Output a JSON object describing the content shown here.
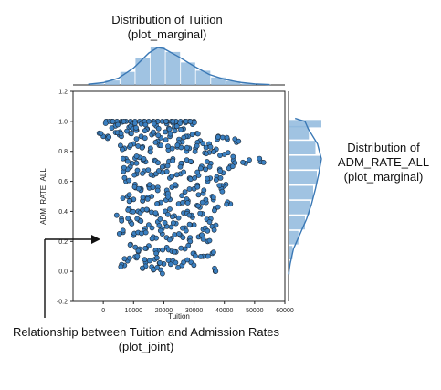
{
  "annotations": {
    "top": {
      "line1": "Distribution of Tuition",
      "line2": "(plot_marginal)"
    },
    "right": {
      "line1": "Distribution of",
      "line2": "ADM_RATE_ALL",
      "line3": "(plot_marginal)"
    },
    "bottom": {
      "line1": "Relationship between Tuition and Admission Rates",
      "line2": "(plot_joint)"
    }
  },
  "chart_data": {
    "type": "scatter",
    "xlabel": "Tuition",
    "ylabel": "ADM_RATE_ALL",
    "xlim": [
      -10000,
      60000
    ],
    "ylim": [
      -0.2,
      1.2
    ],
    "x_ticks": [
      0,
      10000,
      20000,
      30000,
      40000,
      50000,
      60000
    ],
    "y_ticks": [
      -0.2,
      0.0,
      0.2,
      0.4,
      0.6,
      0.8,
      1.0,
      1.2
    ],
    "x_tick_labels": [
      "0",
      "10000",
      "20000",
      "30000",
      "40000",
      "50000",
      "60000"
    ],
    "y_tick_labels": [
      "-0.2",
      "0.0",
      "0.2",
      "0.4",
      "0.6",
      "0.8",
      "1.0",
      "1.2"
    ],
    "point_color": "#3a7fc0",
    "point_edge": "#1f2a36",
    "marginal_color": "#8fb9dd",
    "marginal_line": "#3a78b5",
    "points_dense": [
      [
        1000,
        1.0
      ],
      [
        2000,
        1.0
      ],
      [
        3000,
        1.0
      ],
      [
        4500,
        1.0
      ],
      [
        6000,
        1.0
      ],
      [
        7500,
        1.0
      ],
      [
        9000,
        1.0
      ],
      [
        10500,
        1.0
      ],
      [
        12000,
        1.0
      ],
      [
        13500,
        1.0
      ],
      [
        15000,
        1.0
      ],
      [
        16500,
        1.0
      ],
      [
        18000,
        1.0
      ],
      [
        19500,
        1.0
      ],
      [
        21000,
        1.0
      ],
      [
        22500,
        1.0
      ],
      [
        24000,
        1.0
      ],
      [
        25500,
        1.0
      ],
      [
        27000,
        1.0
      ],
      [
        28500,
        1.0
      ],
      [
        30000,
        1.0
      ],
      [
        0,
        0.9
      ],
      [
        1500,
        0.9
      ],
      [
        4000,
        0.97
      ],
      [
        5500,
        0.93
      ],
      [
        8500,
        0.96
      ],
      [
        11000,
        0.94
      ],
      [
        14500,
        0.95
      ],
      [
        17500,
        0.97
      ],
      [
        20500,
        0.93
      ],
      [
        23500,
        0.96
      ],
      [
        26500,
        0.95
      ],
      [
        29500,
        0.98
      ],
      [
        31000,
        0.92
      ],
      [
        6000,
        0.9
      ],
      [
        9000,
        0.92
      ],
      [
        12500,
        0.9
      ],
      [
        16000,
        0.91
      ],
      [
        19000,
        0.89
      ],
      [
        22000,
        0.9
      ],
      [
        25000,
        0.88
      ],
      [
        28000,
        0.9
      ],
      [
        32000,
        0.87
      ],
      [
        35000,
        0.85
      ],
      [
        38000,
        0.9
      ],
      [
        41000,
        0.88
      ],
      [
        44000,
        0.86
      ],
      [
        7000,
        0.82
      ],
      [
        10000,
        0.85
      ],
      [
        13000,
        0.83
      ],
      [
        15500,
        0.8
      ],
      [
        18500,
        0.84
      ],
      [
        21500,
        0.81
      ],
      [
        24500,
        0.83
      ],
      [
        27500,
        0.8
      ],
      [
        30500,
        0.82
      ],
      [
        33500,
        0.79
      ],
      [
        36500,
        0.8
      ],
      [
        40000,
        0.78
      ],
      [
        43000,
        0.74
      ],
      [
        7500,
        0.75
      ],
      [
        9500,
        0.72
      ],
      [
        12000,
        0.76
      ],
      [
        14000,
        0.73
      ],
      [
        17000,
        0.74
      ],
      [
        20000,
        0.7
      ],
      [
        23000,
        0.75
      ],
      [
        26000,
        0.72
      ],
      [
        29000,
        0.73
      ],
      [
        32500,
        0.7
      ],
      [
        35500,
        0.72
      ],
      [
        38500,
        0.68
      ],
      [
        42000,
        0.7
      ],
      [
        47000,
        0.72
      ],
      [
        52000,
        0.73
      ],
      [
        8000,
        0.68
      ],
      [
        11000,
        0.65
      ],
      [
        13500,
        0.67
      ],
      [
        16500,
        0.64
      ],
      [
        19500,
        0.66
      ],
      [
        22500,
        0.63
      ],
      [
        25500,
        0.65
      ],
      [
        28500,
        0.62
      ],
      [
        31500,
        0.64
      ],
      [
        34500,
        0.6
      ],
      [
        37500,
        0.63
      ],
      [
        40500,
        0.58
      ],
      [
        7500,
        0.6
      ],
      [
        10500,
        0.58
      ],
      [
        12500,
        0.55
      ],
      [
        15000,
        0.57
      ],
      [
        18000,
        0.56
      ],
      [
        21000,
        0.54
      ],
      [
        24000,
        0.57
      ],
      [
        27000,
        0.53
      ],
      [
        30000,
        0.55
      ],
      [
        33000,
        0.52
      ],
      [
        36000,
        0.5
      ],
      [
        39000,
        0.55
      ],
      [
        8000,
        0.5
      ],
      [
        10000,
        0.48
      ],
      [
        13000,
        0.47
      ],
      [
        16000,
        0.5
      ],
      [
        19000,
        0.46
      ],
      [
        22000,
        0.48
      ],
      [
        25000,
        0.45
      ],
      [
        28000,
        0.47
      ],
      [
        31000,
        0.44
      ],
      [
        34000,
        0.46
      ],
      [
        37000,
        0.42
      ],
      [
        42000,
        0.45
      ],
      [
        8500,
        0.42
      ],
      [
        11500,
        0.4
      ],
      [
        14500,
        0.41
      ],
      [
        17500,
        0.38
      ],
      [
        20500,
        0.4
      ],
      [
        23500,
        0.37
      ],
      [
        26500,
        0.39
      ],
      [
        29500,
        0.36
      ],
      [
        32500,
        0.38
      ],
      [
        35500,
        0.35
      ],
      [
        6000,
        0.35
      ],
      [
        9000,
        0.33
      ],
      [
        12000,
        0.34
      ],
      [
        15000,
        0.31
      ],
      [
        18000,
        0.33
      ],
      [
        21000,
        0.3
      ],
      [
        24000,
        0.32
      ],
      [
        27000,
        0.29
      ],
      [
        30000,
        0.31
      ],
      [
        33000,
        0.28
      ],
      [
        36000,
        0.3
      ],
      [
        6500,
        0.26
      ],
      [
        10000,
        0.24
      ],
      [
        13500,
        0.27
      ],
      [
        16500,
        0.23
      ],
      [
        19500,
        0.25
      ],
      [
        22500,
        0.22
      ],
      [
        25500,
        0.24
      ],
      [
        28500,
        0.21
      ],
      [
        31500,
        0.23
      ],
      [
        34500,
        0.2
      ],
      [
        9000,
        0.18
      ],
      [
        12000,
        0.15
      ],
      [
        15000,
        0.17
      ],
      [
        18000,
        0.14
      ],
      [
        21000,
        0.16
      ],
      [
        24000,
        0.13
      ],
      [
        27000,
        0.15
      ],
      [
        30000,
        0.12
      ],
      [
        33000,
        0.1
      ],
      [
        36000,
        0.12
      ],
      [
        8000,
        0.07
      ],
      [
        11000,
        0.09
      ],
      [
        14000,
        0.06
      ],
      [
        17000,
        0.08
      ],
      [
        20000,
        0.05
      ],
      [
        23000,
        0.07
      ],
      [
        26000,
        0.04
      ],
      [
        29000,
        0.06
      ],
      [
        13000,
        0.02
      ],
      [
        16000,
        0.03
      ],
      [
        19000,
        0.01
      ],
      [
        7000,
        0.04
      ],
      [
        37000,
        0.0
      ]
    ],
    "x_marginal_kde": [
      [
        -5000,
        0.02
      ],
      [
        0,
        0.06
      ],
      [
        5000,
        0.18
      ],
      [
        10000,
        0.45
      ],
      [
        15000,
        0.85
      ],
      [
        18000,
        1.0
      ],
      [
        20000,
        0.97
      ],
      [
        25000,
        0.75
      ],
      [
        30000,
        0.5
      ],
      [
        35000,
        0.28
      ],
      [
        40000,
        0.15
      ],
      [
        45000,
        0.07
      ],
      [
        50000,
        0.03
      ],
      [
        55000,
        0.01
      ]
    ],
    "x_marginal_hist": [
      [
        -2000,
        0.03
      ],
      [
        3000,
        0.12
      ],
      [
        8000,
        0.35
      ],
      [
        13000,
        0.72
      ],
      [
        18000,
        1.0
      ],
      [
        23000,
        0.88
      ],
      [
        28000,
        0.6
      ],
      [
        33000,
        0.38
      ],
      [
        38000,
        0.2
      ],
      [
        43000,
        0.1
      ],
      [
        48000,
        0.04
      ],
      [
        53000,
        0.01
      ]
    ],
    "y_marginal_kde": [
      [
        -0.02,
        0.0
      ],
      [
        0.05,
        0.05
      ],
      [
        0.15,
        0.15
      ],
      [
        0.25,
        0.35
      ],
      [
        0.35,
        0.55
      ],
      [
        0.45,
        0.7
      ],
      [
        0.55,
        0.82
      ],
      [
        0.65,
        0.92
      ],
      [
        0.75,
        1.0
      ],
      [
        0.85,
        0.88
      ],
      [
        0.95,
        0.6
      ],
      [
        1.0,
        0.5
      ],
      [
        1.02,
        0.2
      ]
    ],
    "y_marginal_hist": [
      [
        0.025,
        0.04
      ],
      [
        0.125,
        0.12
      ],
      [
        0.225,
        0.3
      ],
      [
        0.325,
        0.5
      ],
      [
        0.425,
        0.64
      ],
      [
        0.525,
        0.75
      ],
      [
        0.625,
        0.86
      ],
      [
        0.725,
        0.95
      ],
      [
        0.825,
        0.82
      ],
      [
        0.925,
        0.62
      ],
      [
        0.985,
        1.2
      ]
    ]
  }
}
